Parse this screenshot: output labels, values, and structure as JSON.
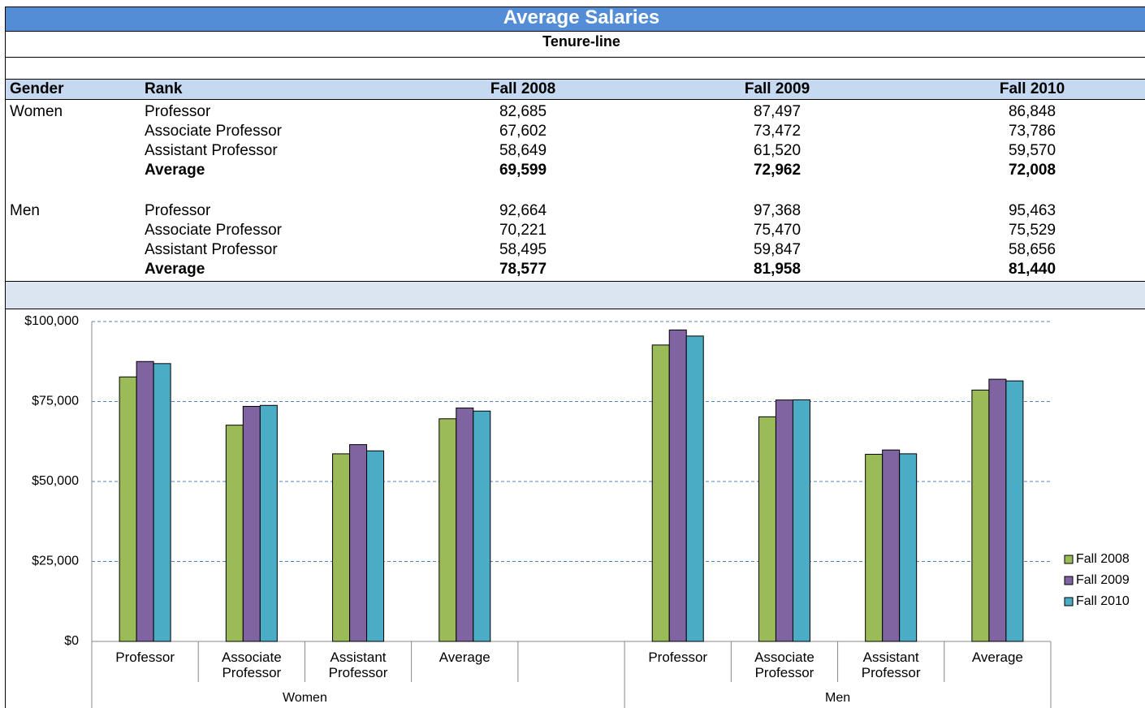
{
  "header": {
    "title": "Average Salaries",
    "subtitle": "Tenure-line"
  },
  "table": {
    "header": [
      "Gender",
      "Rank",
      "Fall 2008",
      "Fall 2009",
      "Fall 2010"
    ],
    "groups": [
      {
        "gender": "Women",
        "rows": [
          [
            "Professor",
            "82,685",
            "87,497",
            "86,848"
          ],
          [
            "Associate Professor",
            "67,602",
            "73,472",
            "73,786"
          ],
          [
            "Assistant Professor",
            "58,649",
            "61,520",
            "59,570"
          ],
          [
            "Average",
            "69,599",
            "72,962",
            "72,008"
          ]
        ]
      },
      {
        "gender": "Men",
        "rows": [
          [
            "Professor",
            "92,664",
            "97,368",
            "95,463"
          ],
          [
            "Associate Professor",
            "70,221",
            "75,470",
            "75,529"
          ],
          [
            "Assistant Professor",
            "58,495",
            "59,847",
            "58,656"
          ],
          [
            "Average",
            "78,577",
            "81,958",
            "81,440"
          ]
        ]
      }
    ]
  },
  "chart_data": {
    "type": "bar",
    "groups": [
      {
        "name": "Women",
        "categories": [
          "Professor",
          "Associate Professor",
          "Assistant Professor",
          "Average",
          null
        ]
      },
      {
        "name": "Men",
        "categories": [
          "Professor",
          "Associate Professor",
          "Assistant Professor",
          "Average"
        ]
      }
    ],
    "series": [
      {
        "name": "Fall 2008",
        "color": "#9bbb59",
        "values": [
          82685,
          67602,
          58649,
          69599,
          null,
          92664,
          70221,
          58495,
          78577
        ]
      },
      {
        "name": "Fall 2009",
        "color": "#8064a2",
        "values": [
          87497,
          73472,
          61520,
          72962,
          null,
          97368,
          75470,
          59847,
          81958
        ]
      },
      {
        "name": "Fall 2010",
        "color": "#4bacc6",
        "values": [
          86848,
          73786,
          59570,
          72008,
          null,
          95463,
          75529,
          58656,
          81440
        ]
      }
    ],
    "ylim": [
      0,
      100000
    ],
    "yticks": [
      {
        "value": 0,
        "label": "$0"
      },
      {
        "value": 25000,
        "label": "$25,000"
      },
      {
        "value": 50000,
        "label": "$50,000"
      },
      {
        "value": 75000,
        "label": "$75,000"
      },
      {
        "value": 100000,
        "label": "$100,000"
      }
    ],
    "grid": true,
    "legend": "right"
  }
}
